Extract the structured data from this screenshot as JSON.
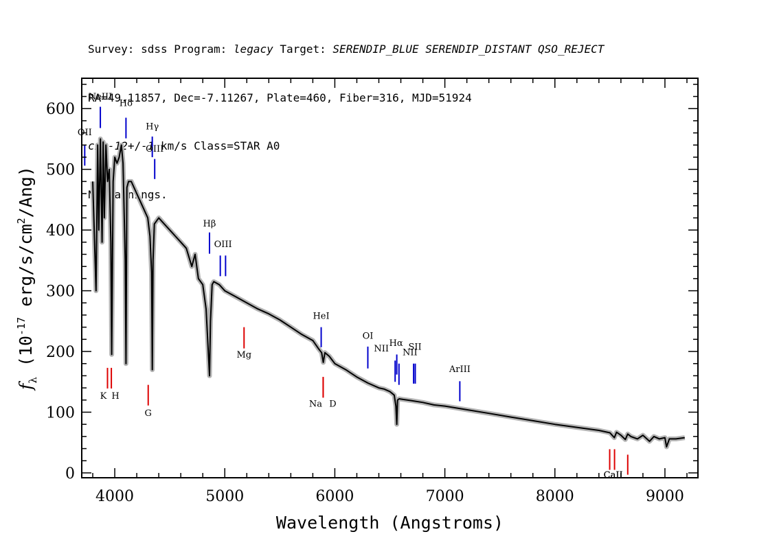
{
  "header": {
    "line1": "Survey: sdss Program: legacy Target: SERENDIP_BLUE SERENDIP_DISTANT QSO_REJECT",
    "line2": "RA=49.11857, Dec=-7.11267, Plate=460, Fiber=316, MJD=51924",
    "line3": "cz=-12+/-1 km/s Class=STAR A0",
    "line4": "No warnings."
  },
  "chart_data": {
    "type": "line",
    "xlabel": "Wavelength (Angstroms)",
    "ylabel": "f_λ (10^-17 erg/s/cm^2/Ang)",
    "xlim": [
      3700,
      9300
    ],
    "ylim": [
      -8,
      650
    ],
    "x_ticks": [
      4000,
      5000,
      6000,
      7000,
      8000,
      9000
    ],
    "y_ticks": [
      0,
      100,
      200,
      300,
      400,
      500,
      600
    ],
    "colors": {
      "spectrum": "#000000",
      "error_band": "#b4b4b4",
      "emission": "#0000cc",
      "absorption": "#dd0000",
      "marker_gray": "#000000"
    },
    "series": [
      {
        "x": [
          3800,
          3830,
          3845,
          3855,
          3870,
          3885,
          3895,
          3905,
          3920,
          3935,
          3950,
          3965,
          3972,
          3985,
          4000,
          4020,
          4040,
          4060,
          4075,
          4095,
          4102,
          4110,
          4125,
          4150,
          4200,
          4250,
          4300,
          4320,
          4335,
          4341,
          4348,
          4360,
          4400,
          4450,
          4500,
          4550,
          4600,
          4650,
          4700,
          4730,
          4760,
          4800,
          4830,
          4850,
          4861,
          4870,
          4885,
          4900,
          4950,
          5000,
          5100,
          5200,
          5300,
          5400,
          5500,
          5600,
          5700,
          5800,
          5850,
          5880,
          5895,
          5910,
          5950,
          6000,
          6100,
          6200,
          6300,
          6400,
          6450,
          6500,
          6540,
          6555,
          6563,
          6570,
          6585,
          6620,
          6700,
          6800,
          6900,
          7000,
          7200,
          7400,
          7600,
          7800,
          8000,
          8200,
          8400,
          8500,
          8540,
          8560,
          8600,
          8640,
          8662,
          8690,
          8750,
          8800,
          8860,
          8900,
          8950,
          9000,
          9015,
          9040,
          9100,
          9180
        ],
        "y": [
          480,
          300,
          540,
          400,
          550,
          380,
          545,
          420,
          540,
          480,
          500,
          380,
          195,
          480,
          520,
          510,
          520,
          540,
          510,
          350,
          180,
          470,
          480,
          480,
          460,
          440,
          420,
          390,
          330,
          170,
          350,
          410,
          420,
          410,
          400,
          390,
          380,
          370,
          340,
          360,
          320,
          310,
          270,
          200,
          160,
          250,
          310,
          315,
          310,
          300,
          290,
          280,
          270,
          262,
          252,
          240,
          228,
          218,
          205,
          198,
          182,
          198,
          192,
          180,
          170,
          158,
          148,
          140,
          138,
          134,
          128,
          110,
          80,
          120,
          122,
          121,
          119,
          116,
          112,
          110,
          104,
          98,
          92,
          86,
          80,
          75,
          70,
          66,
          58,
          67,
          62,
          55,
          64,
          60,
          56,
          62,
          52,
          60,
          56,
          58,
          43,
          56,
          56,
          58
        ]
      }
    ],
    "emission_lines": [
      {
        "label": "OII",
        "wavelength": 3727,
        "label_y": 556,
        "y0": 540,
        "y1": 506
      },
      {
        "label": "NeIII",
        "wavelength": 3869,
        "label_y": 615,
        "y0": 603,
        "y1": 568
      },
      {
        "label": "Hδ",
        "wavelength": 4102,
        "label_y": 604,
        "y0": 585,
        "y1": 551
      },
      {
        "label": "Hγ",
        "wavelength": 4341,
        "label_y": 566,
        "y0": 554,
        "y1": 520
      },
      {
        "label": "OIII",
        "wavelength": 4363,
        "label_y": 529,
        "y0": 517,
        "y1": 484
      },
      {
        "label": "Hβ",
        "wavelength": 4861,
        "label_y": 406,
        "y0": 396,
        "y1": 361
      },
      {
        "label": "OIII",
        "wavelength": 4959,
        "label_y": 372,
        "y0": 358,
        "y1": 324
      },
      {
        "label": "OIII",
        "wavelength": 5007,
        "label_y": 372,
        "y0": 358,
        "y1": 324
      },
      {
        "label": "HeI",
        "wavelength": 5876,
        "label_y": 254,
        "y0": 240,
        "y1": 207
      },
      {
        "label": "OI",
        "wavelength": 6300,
        "label_y": 221,
        "y0": 208,
        "y1": 172
      },
      {
        "label": "NII",
        "wavelength": 6548,
        "label_y": 200,
        "y0": 185,
        "y1": 150
      },
      {
        "label": "Hα",
        "wavelength": 6563,
        "label_y": 209,
        "y0": 195,
        "y1": 162
      },
      {
        "label": "NII",
        "wavelength": 6583,
        "label_y": 194,
        "y0": 180,
        "y1": 145
      },
      {
        "label": "SII",
        "wavelength": 6716,
        "label_y": 203,
        "y0": 180,
        "y1": 147
      },
      {
        "label": "SII",
        "wavelength": 6731,
        "label_y": 203,
        "y0": 180,
        "y1": 147
      },
      {
        "label": "ArIII",
        "wavelength": 7136,
        "label_y": 166,
        "y0": 151,
        "y1": 118
      }
    ],
    "absorption_lines": [
      {
        "label": "K",
        "wavelength": 3934,
        "label_y": 122,
        "y0": 173,
        "y1": 139
      },
      {
        "label": "H",
        "wavelength": 3969,
        "label_y": 122,
        "y0": 173,
        "y1": 139
      },
      {
        "label": "G",
        "wavelength": 4304,
        "label_y": 94,
        "y0": 145,
        "y1": 111
      },
      {
        "label": "Mg",
        "wavelength": 5175,
        "label_y": 190,
        "y0": 240,
        "y1": 205
      },
      {
        "label": "Na",
        "wavelength": 5894,
        "label_y": 109,
        "y0": 158,
        "y1": 124
      },
      {
        "label": "D",
        "wavelength": 5894,
        "label_y": 109,
        "y0": 158,
        "y1": 124
      },
      {
        "label": "CaII",
        "wavelength": 8498,
        "label_y": -8,
        "y0": 39,
        "y1": 5
      },
      {
        "label": "CaII",
        "wavelength": 8542,
        "label_y": -8,
        "y0": 39,
        "y1": 5
      },
      {
        "label": "CaII",
        "wavelength": 8662,
        "label_y": -8,
        "y0": 30,
        "y1": -3
      }
    ]
  }
}
